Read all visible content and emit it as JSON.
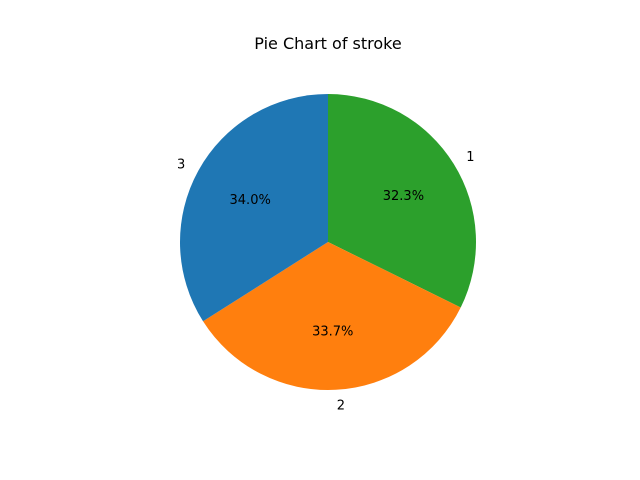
{
  "chart_data": {
    "type": "pie",
    "title": "Pie Chart of stroke",
    "labels": [
      "1",
      "2",
      "3"
    ],
    "values": [
      32.3,
      33.7,
      34.0
    ],
    "percent_labels": [
      "32.3%",
      "33.7%",
      "34.0%"
    ],
    "colors": [
      "#2ca02c",
      "#ff7f0e",
      "#1f77b4"
    ],
    "start_angle_deg": 90,
    "direction": "clockwise"
  }
}
